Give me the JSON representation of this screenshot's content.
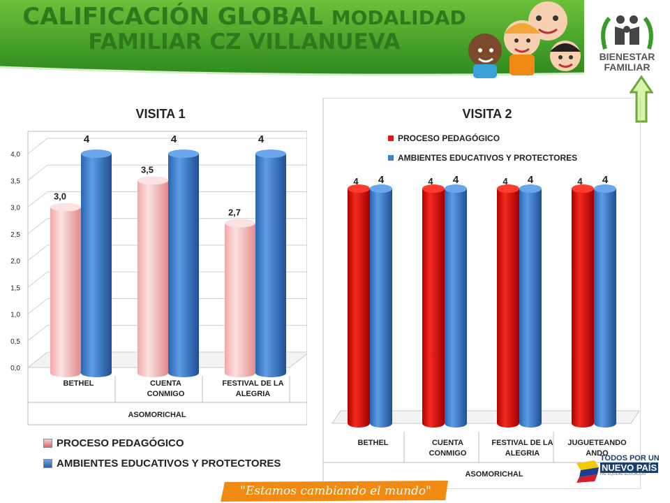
{
  "header": {
    "title_part1": "CALIFICACIÓN GLOBAL",
    "title_part2": "MODALIDAD",
    "title_line2": "FAMILIAR CZ VILLANUEVA",
    "logo_line1": "BIENESTAR",
    "logo_line2": "FAMILIAR"
  },
  "footer": {
    "slogan": "\"Estamos cambiando el mundo\"",
    "brand_line1": "TODOS POR UN",
    "brand_line2": "NUEVO PAÍS",
    "brand_line3": "PAZ  EQUIDAD  EDUCACIÓN"
  },
  "colors": {
    "header_green": "#3f9a2a",
    "title_green": "#2d7a1c",
    "series1_v1": "#f4b8b8",
    "series1_v2": "#e8150f",
    "series2": "#3d7fd0",
    "footer_orange": "#f08a12"
  },
  "chart_data": [
    {
      "type": "bar",
      "title": "VISITA 1",
      "categories": [
        "BETHEL",
        "CUENTA CONMIGO",
        "FESTIVAL DE LA ALEGRIA"
      ],
      "group_label": "ASOMORICHAL",
      "ylim": [
        0,
        4
      ],
      "yticks": [
        "0,0",
        "0,5",
        "1,0",
        "1,5",
        "2,0",
        "2,5",
        "3,0",
        "3,5",
        "4,0"
      ],
      "series": [
        {
          "name": "PROCESO PEDAGÓGICO",
          "values": [
            3.0,
            3.5,
            2.7
          ],
          "labels": [
            "3,0",
            "3,5",
            "2,7"
          ]
        },
        {
          "name": "AMBIENTES EDUCATIVOS Y PROTECTORES",
          "values": [
            4,
            4,
            4
          ],
          "labels": [
            "4",
            "4",
            "4"
          ]
        }
      ],
      "legend_position": "bottom",
      "grid": true
    },
    {
      "type": "bar",
      "title": "VISITA 2",
      "categories": [
        "BETHEL",
        "CUENTA CONMIGO",
        "FESTIVAL DE LA ALEGRIA",
        "JUGUETEANDO ANDO"
      ],
      "group_label": "ASOMORICHAL",
      "series": [
        {
          "name": "PROCESO PEDAGÓGICO",
          "values": [
            4,
            4,
            4,
            4
          ],
          "labels": [
            "4",
            "4",
            "4",
            "4"
          ]
        },
        {
          "name": "AMBIENTES EDUCATIVOS Y PROTECTORES",
          "values": [
            4,
            4,
            4,
            4
          ],
          "labels": [
            "4",
            "4",
            "4",
            "4"
          ]
        }
      ],
      "legend_position": "top",
      "grid": false
    }
  ]
}
